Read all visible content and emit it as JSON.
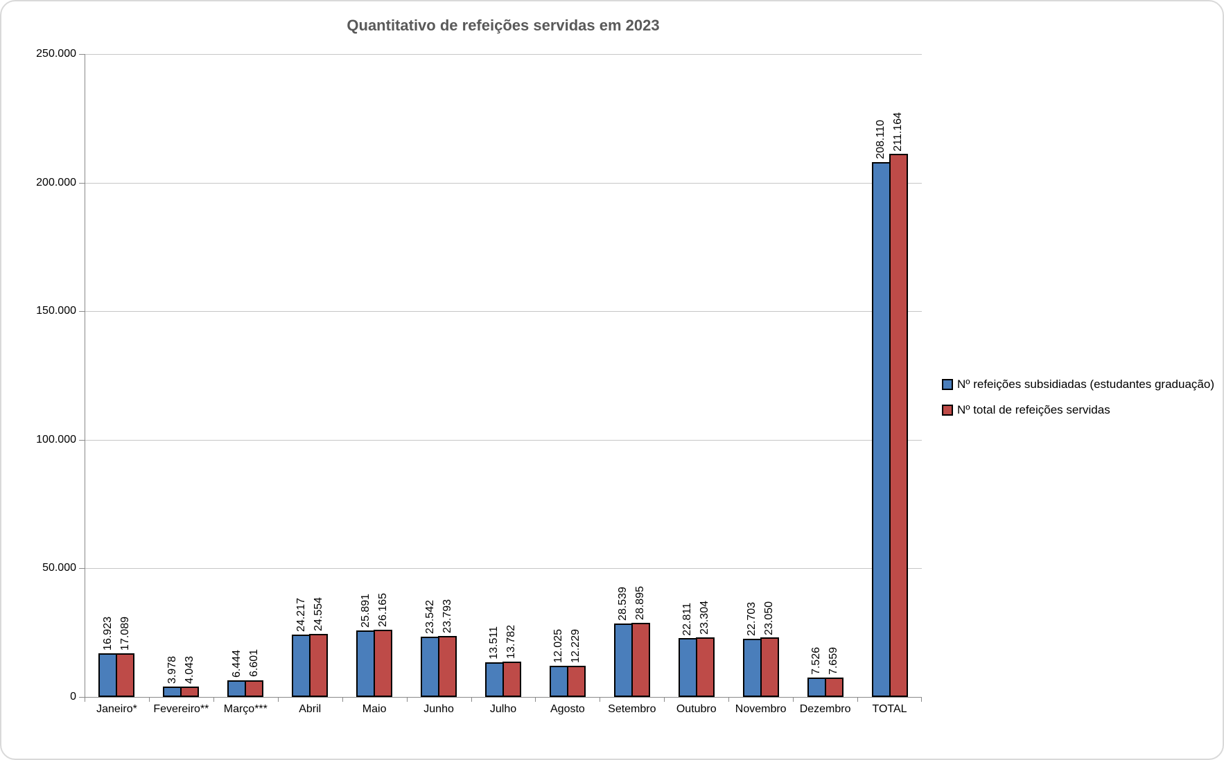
{
  "title": "Quantitativo de refeições servidas em 2023",
  "title_color": "#595959",
  "legend": {
    "items": [
      {
        "label": "Nº refeições subsidiadas (estudantes graduação)",
        "color": "#4a7ebb"
      },
      {
        "label": "Nº total de refeições servidas",
        "color": "#be4b48"
      }
    ]
  },
  "chart_data": {
    "type": "bar",
    "title": "Quantitativo de refeições servidas em 2023",
    "xlabel": "",
    "ylabel": "",
    "ylim": [
      0,
      250000
    ],
    "grid": true,
    "legend_position": "right",
    "bar_label_rotation": 90,
    "categories": [
      "Janeiro*",
      "Fevereiro**",
      "Março***",
      "Abril",
      "Maio",
      "Junho",
      "Julho",
      "Agosto",
      "Setembro",
      "Outubro",
      "Novembro",
      "Dezembro",
      "TOTAL"
    ],
    "series": [
      {
        "name": "Nº refeições subsidiadas (estudantes graduação)",
        "color": "#4a7ebb",
        "values": [
          16923,
          3978,
          6444,
          24217,
          25891,
          23542,
          13511,
          12025,
          28539,
          22811,
          22703,
          7526,
          208110
        ],
        "labels": [
          "16.923",
          "3.978",
          "6.444",
          "24.217",
          "25.891",
          "23.542",
          "13.511",
          "12.025",
          "28.539",
          "22.811",
          "22.703",
          "7.526",
          "208.110"
        ]
      },
      {
        "name": "Nº total de refeições servidas",
        "color": "#be4b48",
        "values": [
          17089,
          4043,
          6601,
          24554,
          26165,
          23793,
          13782,
          12229,
          28895,
          23304,
          23050,
          7659,
          211164
        ],
        "labels": [
          "17.089",
          "4.043",
          "6.601",
          "24.554",
          "26.165",
          "23.793",
          "13.782",
          "12.229",
          "28.895",
          "23.304",
          "23.050",
          "7.659",
          "211.164"
        ]
      }
    ],
    "y_ticks": [
      {
        "value": 0,
        "label": "0"
      },
      {
        "value": 50000,
        "label": "50.000"
      },
      {
        "value": 100000,
        "label": "100.000"
      },
      {
        "value": 150000,
        "label": "150.000"
      },
      {
        "value": 200000,
        "label": "200.000"
      },
      {
        "value": 250000,
        "label": "250.000"
      }
    ]
  }
}
